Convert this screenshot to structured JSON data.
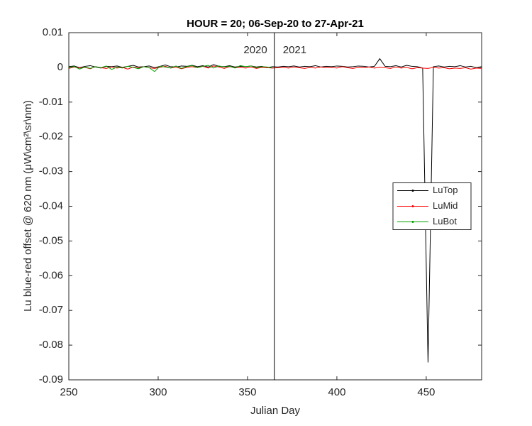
{
  "chart_data": {
    "type": "line",
    "title": "HOUR = 20; 06-Sep-20 to 27-Apr-21",
    "xlabel": "Julian Day",
    "ylabel": "Lu blue-red offset @ 620 nm (μW\\cm²\\sr\\nm)",
    "xlim": [
      250,
      481
    ],
    "ylim": [
      -0.09,
      0.01
    ],
    "xticks": [
      250,
      300,
      350,
      400,
      450
    ],
    "yticks": [
      0.01,
      0,
      -0.01,
      -0.02,
      -0.03,
      -0.04,
      -0.05,
      -0.06,
      -0.07,
      -0.08,
      -0.09
    ],
    "legend_position": "east",
    "divider_x": 365,
    "annotations": [
      "2020",
      "2021"
    ],
    "x": [
      250,
      253,
      256,
      259,
      262,
      265,
      268,
      271,
      274,
      277,
      280,
      283,
      286,
      289,
      292,
      295,
      298,
      301,
      304,
      307,
      310,
      313,
      316,
      319,
      322,
      325,
      328,
      331,
      334,
      337,
      340,
      343,
      346,
      349,
      352,
      355,
      358,
      361,
      364,
      367,
      370,
      373,
      376,
      379,
      382,
      385,
      388,
      391,
      394,
      397,
      400,
      403,
      406,
      409,
      412,
      415,
      418,
      421,
      424,
      427,
      430,
      433,
      436,
      439,
      442,
      445,
      448,
      451,
      454,
      457,
      460,
      463,
      466,
      469,
      472,
      475,
      478,
      481
    ],
    "series": [
      {
        "name": "LuTop",
        "color": "#000000",
        "values": [
          0.0002,
          0.0004,
          -0.0001,
          0.0003,
          0.0005,
          0.0001,
          -0.0002,
          0.0003,
          0.0002,
          0.0004,
          0,
          0.0003,
          0.0006,
          0.0001,
          0.0002,
          0.0004,
          -0.0001,
          0.0003,
          0.0007,
          0.0002,
          0.0001,
          0.0004,
          0.0003,
          0.0006,
          0.0002,
          0.0005,
          0.0001,
          0.0008,
          0.0003,
          0.0002,
          0.0005,
          0.0001,
          0.0003,
          0.0002,
          0.0004,
          0.0001,
          0.0003,
          -0.0001,
          0.0002,
          0.0001,
          0.0003,
          0.0002,
          0.0004,
          0.0001,
          0.0003,
          0.0002,
          0.0005,
          0.0001,
          0.0003,
          0.0002,
          0.0004,
          0.0003,
          0.0001,
          0.0002,
          0.0004,
          0.0003,
          0.0001,
          0.0003,
          0.0025,
          0.0003,
          0.0002,
          0.0005,
          0.0001,
          0.0006,
          0.0003,
          0.0002,
          -0.0002,
          -0.085,
          0.0002,
          0.0004,
          0.0001,
          0.0003,
          0.0002,
          0.0005,
          0.0001,
          0.0003,
          -0.0001,
          0.0002
        ]
      },
      {
        "name": "LuMid",
        "color": "#ff0000",
        "values": [
          -0.0003,
          0.0001,
          -0.0002,
          0,
          -0.0004,
          0.0002,
          -0.0001,
          -0.0003,
          0.0001,
          -0.0002,
          0,
          -0.0005,
          0.0001,
          -0.0002,
          0.0002,
          -0.0001,
          -0.0003,
          0,
          0.0003,
          -0.0002,
          0.0001,
          -0.0004,
          0,
          0.0002,
          -0.0001,
          0.0003,
          -0.0002,
          0.0004,
          0.0001,
          -0.0003,
          0.0002,
          -0.0001,
          0,
          -0.0002,
          0.0001,
          -0.0003,
          0,
          -0.0001,
          -0.0002,
          -0.0001,
          0,
          -0.0002,
          0.0001,
          -0.0001,
          -0.0003,
          0,
          -0.0002,
          0.0001,
          -0.0001,
          0,
          -0.0002,
          0.0002,
          -0.0001,
          -0.0003,
          0,
          -0.0001,
          0.0001,
          -0.0002,
          0,
          -0.0001,
          -0.0003,
          0.0001,
          -0.0002,
          0,
          -0.0004,
          -0.0001,
          -0.0002,
          -0.0003,
          0,
          -0.0002,
          -0.0001,
          -0.0004,
          -0.0002,
          -0.0003,
          -0.0001,
          -0.0005,
          -0.0002,
          -0.0003
        ]
      },
      {
        "name": "LuBot",
        "color": "#00a000",
        "values": [
          -0.0002,
          0.0003,
          -0.0005,
          0.0001,
          -0.0003,
          0.0002,
          -0.0001,
          0.0004,
          -0.0006,
          0.0001,
          -0.0002,
          0.0003,
          0,
          -0.0004,
          0.0002,
          -0.0001,
          -0.0012,
          0.0003,
          0.0001,
          -0.0002,
          0.0004,
          -0.0003,
          0.0002,
          0.0005,
          -0.0001,
          0.0003,
          0.0006,
          -0.0002,
          0.0004,
          0.0001,
          0.0003,
          -0.0002,
          0.0005,
          0.0002,
          0.0004,
          -0.0001,
          0.0002,
          0.0001,
          -0.0002,
          null,
          null,
          null,
          null,
          null,
          null,
          null,
          null,
          null,
          null,
          null,
          null,
          null,
          null,
          null,
          null,
          null,
          null,
          null,
          null,
          null,
          null,
          null,
          null,
          null,
          null,
          null,
          null,
          null,
          null,
          null,
          null,
          null,
          null,
          null,
          null,
          null,
          null,
          null
        ]
      }
    ]
  }
}
